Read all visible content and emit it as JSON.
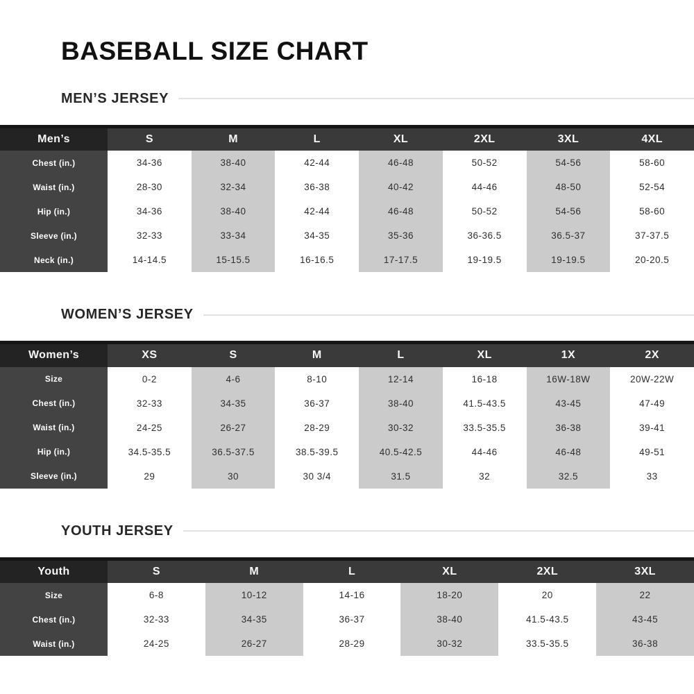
{
  "page": {
    "title": "BASEBALL SIZE CHART"
  },
  "colors": {
    "table_top_bar": "#161616",
    "corner_cell": "#232323",
    "header_cell": "#3a3a3a",
    "row_label_cell": "#434343",
    "shaded_column": "#cbcbcb",
    "heading_rule": "#e2e2e2",
    "data_text": "#2f2f2f"
  },
  "sections": [
    {
      "id": "mens",
      "heading": "MEN’S JERSEY",
      "table": {
        "corner_label": "Men’s",
        "sizes": [
          "S",
          "M",
          "L",
          "XL",
          "2XL",
          "3XL",
          "4XL"
        ],
        "rows": [
          {
            "label": "Chest (in.)",
            "values": [
              "34-36",
              "38-40",
              "42-44",
              "46-48",
              "50-52",
              "54-56",
              "58-60"
            ]
          },
          {
            "label": "Waist (in.)",
            "values": [
              "28-30",
              "32-34",
              "36-38",
              "40-42",
              "44-46",
              "48-50",
              "52-54"
            ]
          },
          {
            "label": "Hip (in.)",
            "values": [
              "34-36",
              "38-40",
              "42-44",
              "46-48",
              "50-52",
              "54-56",
              "58-60"
            ]
          },
          {
            "label": "Sleeve (in.)",
            "values": [
              "32-33",
              "33-34",
              "34-35",
              "35-36",
              "36-36.5",
              "36.5-37",
              "37-37.5"
            ]
          },
          {
            "label": "Neck (in.)",
            "values": [
              "14-14.5",
              "15-15.5",
              "16-16.5",
              "17-17.5",
              "19-19.5",
              "19-19.5",
              "20-20.5"
            ]
          }
        ]
      }
    },
    {
      "id": "womens",
      "heading": "WOMEN’S JERSEY",
      "table": {
        "corner_label": "Women’s",
        "sizes": [
          "XS",
          "S",
          "M",
          "L",
          "XL",
          "1X",
          "2X"
        ],
        "rows": [
          {
            "label": "Size",
            "values": [
              "0-2",
              "4-6",
              "8-10",
              "12-14",
              "16-18",
              "16W-18W",
              "20W-22W"
            ]
          },
          {
            "label": "Chest (in.)",
            "values": [
              "32-33",
              "34-35",
              "36-37",
              "38-40",
              "41.5-43.5",
              "43-45",
              "47-49"
            ]
          },
          {
            "label": "Waist (in.)",
            "values": [
              "24-25",
              "26-27",
              "28-29",
              "30-32",
              "33.5-35.5",
              "36-38",
              "39-41"
            ]
          },
          {
            "label": "Hip (in.)",
            "values": [
              "34.5-35.5",
              "36.5-37.5",
              "38.5-39.5",
              "40.5-42.5",
              "44-46",
              "46-48",
              "49-51"
            ]
          },
          {
            "label": "Sleeve (in.)",
            "values": [
              "29",
              "30",
              "30 3/4",
              "31.5",
              "32",
              "32.5",
              "33"
            ]
          }
        ]
      }
    },
    {
      "id": "youth",
      "heading": "YOUTH JERSEY",
      "table": {
        "corner_label": "Youth",
        "sizes": [
          "S",
          "M",
          "L",
          "XL",
          "2XL",
          "3XL"
        ],
        "rows": [
          {
            "label": "Size",
            "values": [
              "6-8",
              "10-12",
              "14-16",
              "18-20",
              "20",
              "22"
            ]
          },
          {
            "label": "Chest (in.)",
            "values": [
              "32-33",
              "34-35",
              "36-37",
              "38-40",
              "41.5-43.5",
              "43-45"
            ]
          },
          {
            "label": "Waist (in.)",
            "values": [
              "24-25",
              "26-27",
              "28-29",
              "30-32",
              "33.5-35.5",
              "36-38"
            ]
          }
        ]
      }
    }
  ]
}
